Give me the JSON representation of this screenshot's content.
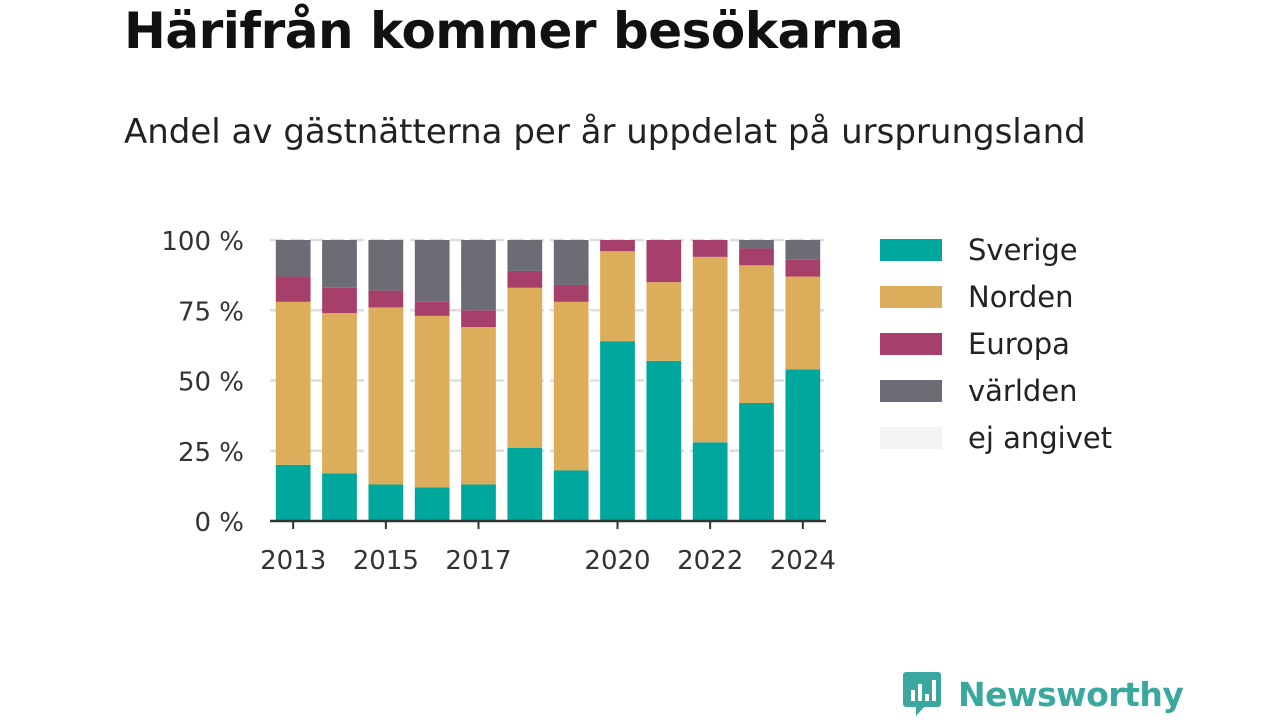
{
  "header": {
    "title": "Härifrån kommer besökarna",
    "subtitle": "Andel av gästnätterna per år uppdelat på ursprungsland"
  },
  "chart_data": {
    "type": "bar",
    "stacked": true,
    "title": "Härifrån kommer besökarna",
    "subtitle": "Andel av gästnätterna per år uppdelat på ursprungsland",
    "categories": [
      "2013",
      "2014",
      "2015",
      "2016",
      "2017",
      "2018",
      "2019",
      "2020",
      "2021",
      "2022",
      "2023",
      "2024"
    ],
    "x_tick_labels": [
      "2013",
      "2015",
      "2017",
      "2020",
      "2022",
      "2024"
    ],
    "y_ticks": [
      0,
      25,
      50,
      75,
      100
    ],
    "y_tick_labels": [
      "0 %",
      "25 %",
      "50 %",
      "75 %",
      "100 %"
    ],
    "ylim": [
      0,
      100
    ],
    "grid": true,
    "legend_position": "right",
    "series": [
      {
        "name": "Sverige",
        "color": "#00a79d",
        "values": [
          20,
          17,
          13,
          12,
          13,
          26,
          18,
          64,
          57,
          28,
          42,
          54
        ]
      },
      {
        "name": "Norden",
        "color": "#dcad5a",
        "values": [
          58,
          57,
          63,
          61,
          56,
          57,
          60,
          32,
          28,
          66,
          49,
          33
        ]
      },
      {
        "name": "Europa",
        "color": "#a6406a",
        "values": [
          9,
          9,
          6,
          5,
          6,
          6,
          6,
          4,
          15,
          6,
          6,
          6
        ]
      },
      {
        "name": "världen",
        "color": "#6c6c74",
        "values": [
          13,
          17,
          18,
          22,
          25,
          11,
          16,
          0,
          0,
          0,
          3,
          7
        ]
      },
      {
        "name": "ej angivet",
        "color": "#f4f4f2",
        "values": [
          0,
          0,
          0,
          0,
          0,
          0,
          0,
          0,
          0,
          0,
          0,
          0
        ]
      }
    ]
  },
  "brand": {
    "name": "Newsworthy",
    "icon": "newsworthy-logo-icon",
    "color": "#3aa89e"
  }
}
